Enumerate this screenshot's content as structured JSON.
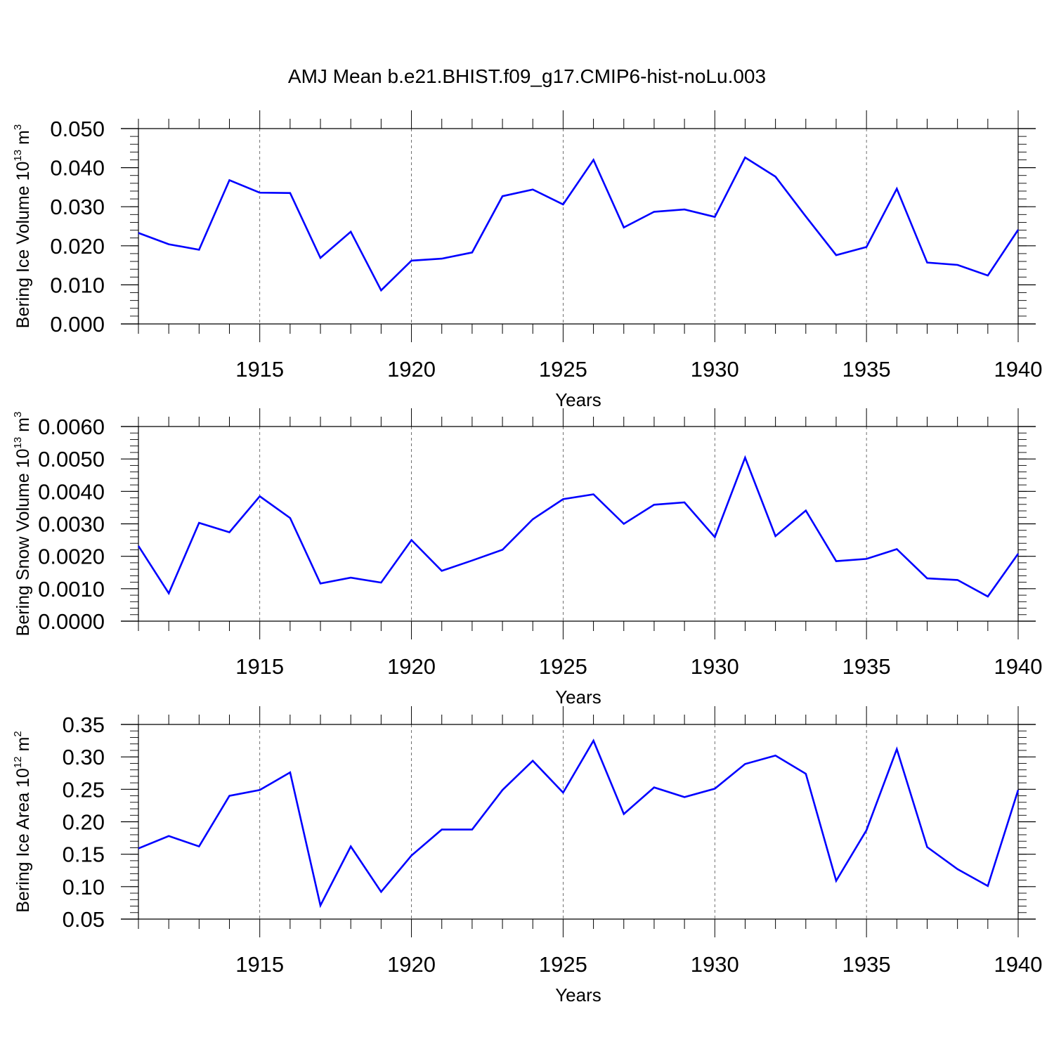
{
  "title": "AMJ Mean b.e21.BHIST.f09_g17.CMIP6-hist-noLu.003",
  "colors": {
    "line": "#0000ff",
    "axis": "#000000",
    "grid": "#000000"
  },
  "chart_data": [
    {
      "type": "line",
      "ylabel": {
        "text": "Bering Ice Volume 10",
        "exp": "13",
        "unit": " m",
        "unit_exp": "3"
      },
      "xlabel": "Years",
      "xlim": [
        1911,
        1940
      ],
      "ylim": [
        0,
        0.05
      ],
      "yticks": [
        0,
        0.01,
        0.02,
        0.03,
        0.04,
        0.05
      ],
      "ytick_labels": [
        "0.000",
        "0.010",
        "0.020",
        "0.030",
        "0.040",
        "0.050"
      ],
      "yminor": 0.002,
      "xticks": [
        1915,
        1920,
        1925,
        1930,
        1935,
        1940
      ],
      "xtick_labels": [
        "1915",
        "1920",
        "1925",
        "1930",
        "1935",
        "1940"
      ],
      "xgrid": true,
      "x": [
        1911,
        1912,
        1913,
        1914,
        1915,
        1916,
        1917,
        1918,
        1919,
        1920,
        1921,
        1922,
        1923,
        1924,
        1925,
        1926,
        1927,
        1928,
        1929,
        1930,
        1931,
        1932,
        1933,
        1934,
        1935,
        1936,
        1937,
        1938,
        1939,
        1940
      ],
      "values": [
        0.0233,
        0.0204,
        0.019,
        0.0368,
        0.0336,
        0.0335,
        0.0169,
        0.0236,
        0.0086,
        0.0162,
        0.0167,
        0.0183,
        0.0327,
        0.0344,
        0.0306,
        0.042,
        0.0247,
        0.0287,
        0.0293,
        0.0274,
        0.0426,
        0.0377,
        0.0275,
        0.0176,
        0.0197,
        0.0346,
        0.0157,
        0.0151,
        0.0124,
        0.0241
      ]
    },
    {
      "type": "line",
      "ylabel": {
        "text": "Bering Snow Volume 10",
        "exp": "13",
        "unit": " m",
        "unit_exp": "3"
      },
      "xlabel": "Years",
      "xlim": [
        1911,
        1940
      ],
      "ylim": [
        0,
        0.006
      ],
      "yticks": [
        0,
        0.001,
        0.002,
        0.003,
        0.004,
        0.005,
        0.006
      ],
      "ytick_labels": [
        "0.0000",
        "0.0010",
        "0.0020",
        "0.0030",
        "0.0040",
        "0.0050",
        "0.0060"
      ],
      "yminor": 0.0002,
      "xticks": [
        1915,
        1920,
        1925,
        1930,
        1935,
        1940
      ],
      "xtick_labels": [
        "1915",
        "1920",
        "1925",
        "1930",
        "1935",
        "1940"
      ],
      "xgrid": true,
      "x": [
        1911,
        1912,
        1913,
        1914,
        1915,
        1916,
        1917,
        1918,
        1919,
        1920,
        1921,
        1922,
        1923,
        1924,
        1925,
        1926,
        1927,
        1928,
        1929,
        1930,
        1931,
        1932,
        1933,
        1934,
        1935,
        1936,
        1937,
        1938,
        1939,
        1940
      ],
      "values": [
        0.00232,
        0.00086,
        0.00303,
        0.00274,
        0.00385,
        0.00318,
        0.00116,
        0.00134,
        0.00119,
        0.0025,
        0.00155,
        0.00187,
        0.0022,
        0.00314,
        0.00376,
        0.00391,
        0.003,
        0.00359,
        0.00366,
        0.00259,
        0.00504,
        0.00262,
        0.00341,
        0.00185,
        0.00192,
        0.00222,
        0.00132,
        0.00127,
        0.00076,
        0.00208
      ]
    },
    {
      "type": "line",
      "ylabel": {
        "text": "Bering Ice Area 10",
        "exp": "12",
        "unit": " m",
        "unit_exp": "2"
      },
      "xlabel": "Years",
      "xlim": [
        1911,
        1940
      ],
      "ylim": [
        0.05,
        0.35
      ],
      "yticks": [
        0.05,
        0.1,
        0.15,
        0.2,
        0.25,
        0.3,
        0.35
      ],
      "ytick_labels": [
        "0.05",
        "0.10",
        "0.15",
        "0.20",
        "0.25",
        "0.30",
        "0.35"
      ],
      "yminor": 0.01,
      "xticks": [
        1915,
        1920,
        1925,
        1930,
        1935,
        1940
      ],
      "xtick_labels": [
        "1915",
        "1920",
        "1925",
        "1930",
        "1935",
        "1940"
      ],
      "xgrid": true,
      "x": [
        1911,
        1912,
        1913,
        1914,
        1915,
        1916,
        1917,
        1918,
        1919,
        1920,
        1921,
        1922,
        1923,
        1924,
        1925,
        1926,
        1927,
        1928,
        1929,
        1930,
        1931,
        1932,
        1933,
        1934,
        1935,
        1936,
        1937,
        1938,
        1939,
        1940
      ],
      "values": [
        0.159,
        0.178,
        0.162,
        0.24,
        0.249,
        0.276,
        0.071,
        0.162,
        0.092,
        0.148,
        0.188,
        0.188,
        0.249,
        0.294,
        0.245,
        0.325,
        0.212,
        0.253,
        0.238,
        0.251,
        0.289,
        0.302,
        0.274,
        0.109,
        0.187,
        0.312,
        0.161,
        0.127,
        0.101,
        0.249
      ]
    }
  ]
}
